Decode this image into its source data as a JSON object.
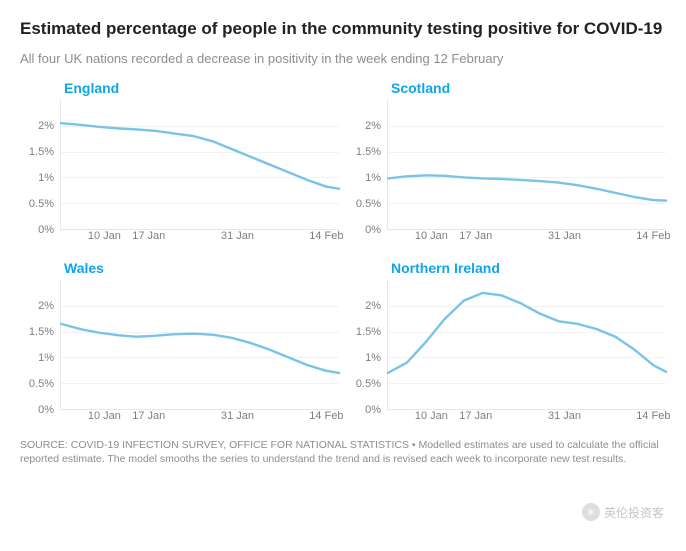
{
  "title": "Estimated percentage of people in the community testing positive for COVID-19",
  "subtitle": "All four UK nations recorded a decrease in positivity in the week ending 12 February",
  "footer": "SOURCE: COVID-19 INFECTION SURVEY, OFFICE FOR NATIONAL STATISTICS • Modelled estimates are used to calculate the official reported estimate. The model smooths the series to understand the trend and is revised each week to incorporate new test results.",
  "watermark": "英伦投资客",
  "line_color": "#7ac3e8",
  "line_width": 2.4,
  "grid_color": "#f1f2f3",
  "axis_color": "#e6e8ea",
  "label_color": "#7c7f83",
  "title_color_panels": "#0ea5e9",
  "background_color": "#ffffff",
  "title_fontsize": 17,
  "subtitle_fontsize": 13,
  "panel_title_fontsize": 14,
  "tick_fontsize": 11,
  "footer_fontsize": 10.5,
  "y": {
    "min": 0,
    "max": 2.5,
    "ticks": [
      2,
      1.5,
      1,
      0.5,
      0
    ],
    "labels": [
      "2%",
      "1.5%",
      "1%",
      "0.5%",
      "0%"
    ]
  },
  "x": {
    "min": 0,
    "max": 44,
    "ticks": [
      7,
      14,
      28,
      42
    ],
    "labels": [
      "10 Jan",
      "17 Jan",
      "31 Jan",
      "14 Feb"
    ]
  },
  "panels": [
    {
      "title": "England",
      "x": [
        0,
        3,
        6,
        9,
        12,
        15,
        18,
        21,
        24,
        27,
        30,
        33,
        36,
        39,
        42,
        44
      ],
      "y": [
        2.05,
        2.02,
        1.98,
        1.95,
        1.93,
        1.9,
        1.85,
        1.8,
        1.7,
        1.55,
        1.4,
        1.25,
        1.1,
        0.95,
        0.82,
        0.78
      ]
    },
    {
      "title": "Scotland",
      "x": [
        0,
        3,
        6,
        9,
        12,
        15,
        18,
        21,
        24,
        27,
        30,
        33,
        36,
        39,
        42,
        44
      ],
      "y": [
        0.98,
        1.02,
        1.04,
        1.03,
        1.0,
        0.98,
        0.97,
        0.95,
        0.93,
        0.9,
        0.85,
        0.78,
        0.7,
        0.62,
        0.56,
        0.55
      ]
    },
    {
      "title": "Wales",
      "x": [
        0,
        3,
        6,
        9,
        12,
        15,
        18,
        21,
        24,
        27,
        30,
        33,
        36,
        39,
        42,
        44
      ],
      "y": [
        1.65,
        1.55,
        1.48,
        1.43,
        1.4,
        1.42,
        1.45,
        1.46,
        1.44,
        1.38,
        1.28,
        1.15,
        1.0,
        0.85,
        0.74,
        0.7
      ]
    },
    {
      "title": "Northern Ireland",
      "x": [
        0,
        3,
        6,
        9,
        12,
        15,
        18,
        21,
        24,
        27,
        30,
        33,
        36,
        39,
        42,
        44
      ],
      "y": [
        0.7,
        0.9,
        1.3,
        1.75,
        2.1,
        2.25,
        2.2,
        2.05,
        1.85,
        1.7,
        1.65,
        1.55,
        1.4,
        1.15,
        0.85,
        0.72
      ]
    }
  ]
}
